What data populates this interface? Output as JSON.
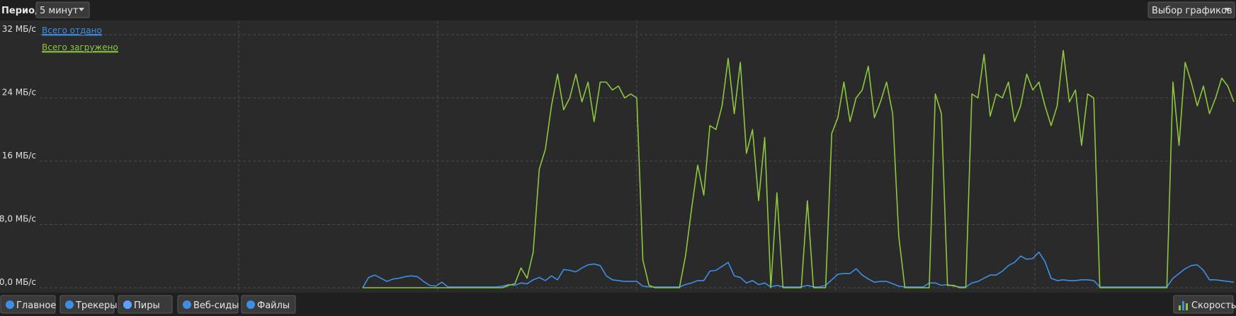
{
  "toolbar": {
    "period_label": "Период:",
    "period_value": "5 минут",
    "graph_select": "Выбор графиков"
  },
  "tabs": [
    "Главное",
    "Трекеры",
    "Пиры",
    "Веб-сиды",
    "Файлы"
  ],
  "speed_button": "Скорость",
  "chart_data": {
    "type": "line",
    "ylim": [
      0,
      32
    ],
    "yticks": [
      {
        "value": 32,
        "label": "32 МБ/с"
      },
      {
        "value": 24,
        "label": "24 МБ/с"
      },
      {
        "value": 16,
        "label": "16 МБ/с"
      },
      {
        "value": 8,
        "label": "8,0 МБ/с"
      },
      {
        "value": 0,
        "label": "0,0 МБ/с"
      }
    ],
    "grid": true,
    "legend": "top-left",
    "series": [
      {
        "name": "Всего отдано",
        "color": "#3d8fe6",
        "values": [
          null,
          null,
          null,
          null,
          null,
          null,
          null,
          null,
          null,
          null,
          null,
          null,
          null,
          null,
          null,
          null,
          null,
          null,
          null,
          null,
          null,
          null,
          null,
          null,
          null,
          null,
          null,
          null,
          null,
          null,
          null,
          null,
          null,
          null,
          null,
          null,
          null,
          null,
          null,
          null,
          null,
          null,
          null,
          null,
          null,
          null,
          null,
          null,
          null,
          null,
          null,
          null,
          null,
          0,
          1.3,
          1.6,
          1.2,
          0.8,
          1.1,
          1.2,
          1.4,
          1.5,
          1.4,
          0.8,
          0.3,
          0.2,
          0.7,
          0.1,
          0.1,
          0.1,
          0.1,
          0.1,
          0.1,
          0.1,
          0.1,
          0.1,
          0.2,
          0.4,
          0.3,
          0.6,
          0.5,
          1.0,
          1.3,
          0.9,
          1.5,
          1.0,
          2.3,
          2.2,
          2.0,
          2.5,
          2.9,
          3.0,
          2.8,
          1.5,
          1.0,
          0.9,
          0.8,
          0.8,
          0.8,
          0.2,
          0.1,
          0.1,
          0.1,
          0.1,
          0.1,
          0.1,
          0.4,
          0.6,
          0.9,
          0.9,
          2.1,
          2.2,
          2.7,
          3.2,
          1.5,
          1.3,
          0.6,
          0.9,
          0.4,
          0.6,
          0.1,
          0.3,
          0.1,
          0.1,
          0.1,
          0.1,
          0.3,
          0.1,
          0.1,
          0.3,
          1.0,
          1.7,
          1.8,
          1.8,
          2.4,
          1.6,
          1.1,
          0.7,
          0.8,
          0.8,
          0.5,
          0.2,
          0.1,
          0.1,
          0.1,
          0.1,
          0.6,
          0.6,
          0.3,
          0.4,
          0.2,
          0.1,
          0.1,
          0.6,
          0.8,
          1.2,
          1.6,
          1.6,
          2.1,
          2.8,
          3.2,
          4.0,
          3.6,
          3.7,
          4.5,
          3.3,
          1.2,
          0.9,
          1.0,
          0.9,
          0.9,
          1.0,
          1.0,
          0.9,
          0.1,
          0.1,
          0.1,
          0.1,
          0.1,
          0.1,
          0.1,
          0.1,
          0.1,
          0.1,
          0.1,
          0.1,
          1.2,
          1.8,
          2.4,
          2.8,
          2.9,
          2.2,
          1.0,
          1.0,
          0.9,
          0.8,
          0.7
        ]
      },
      {
        "name": "Всего загружено",
        "color": "#8dc63f",
        "values": [
          null,
          null,
          null,
          null,
          null,
          null,
          null,
          null,
          null,
          null,
          null,
          null,
          null,
          null,
          null,
          null,
          null,
          null,
          null,
          null,
          null,
          null,
          null,
          null,
          null,
          null,
          null,
          null,
          null,
          null,
          null,
          null,
          null,
          null,
          null,
          null,
          null,
          null,
          null,
          null,
          null,
          null,
          null,
          null,
          null,
          null,
          null,
          null,
          null,
          null,
          null,
          null,
          null,
          0,
          0,
          0,
          0,
          0,
          0,
          0,
          0,
          0,
          0,
          0,
          0,
          0,
          0,
          0,
          0,
          0,
          0,
          0,
          0,
          0,
          0,
          0,
          0,
          0.3,
          0.5,
          2.5,
          1.2,
          4.5,
          15,
          17.5,
          23,
          27,
          22.5,
          24,
          27,
          23.5,
          26,
          21,
          26,
          26,
          25,
          25.5,
          24,
          24.5,
          24,
          3.5,
          0.3,
          0,
          0,
          0,
          0,
          0,
          4,
          10,
          15.5,
          11.7,
          20.5,
          20,
          23,
          29,
          22,
          28.5,
          17,
          20,
          11,
          19,
          0,
          12,
          0,
          0,
          0,
          0,
          11,
          0,
          0,
          0,
          19.5,
          21.5,
          26,
          21,
          24,
          25,
          28,
          21.5,
          23.5,
          26,
          22,
          6.5,
          0,
          0,
          0,
          0,
          0,
          24.5,
          22,
          0.3,
          0.3,
          0,
          0,
          24.5,
          24,
          29.5,
          21.7,
          24.5,
          24,
          26,
          21,
          23,
          27,
          25,
          26,
          23,
          20.5,
          23,
          30,
          23.5,
          25,
          18,
          24.5,
          24,
          0,
          0,
          0,
          0,
          0,
          0,
          0,
          0,
          0,
          0,
          0,
          0,
          26,
          18,
          28.5,
          26,
          23,
          25.5,
          22,
          24,
          26.5,
          25.5,
          23.5
        ]
      }
    ]
  }
}
